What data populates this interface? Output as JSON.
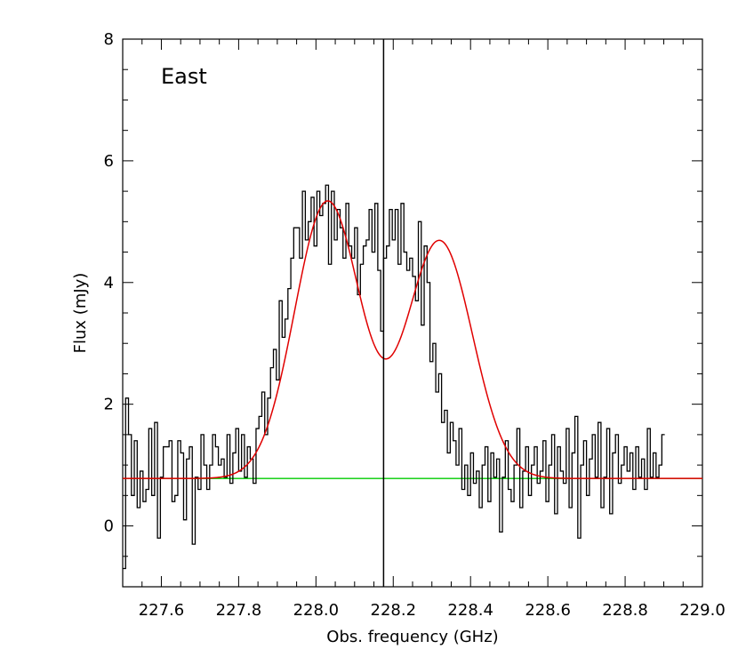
{
  "chart_data": {
    "type": "line",
    "xlabel": "Obs. frequency (GHz)",
    "ylabel": "Flux (mJy)",
    "annotation": "East",
    "xlim": [
      227.5,
      229.0
    ],
    "ylim": [
      -1,
      8
    ],
    "x_ticks": [
      "227.6",
      "227.8",
      "228.0",
      "228.2",
      "228.4",
      "228.6",
      "228.8",
      "229.0"
    ],
    "x_tick_values": [
      227.6,
      227.8,
      228.0,
      228.2,
      228.4,
      228.6,
      228.8,
      229.0
    ],
    "y_ticks": [
      "0",
      "2",
      "4",
      "6",
      "8"
    ],
    "y_tick_values": [
      0,
      2,
      4,
      6,
      8
    ],
    "vertical_line_x": 228.175,
    "colors": {
      "data": "#000000",
      "fit": "#e00000",
      "baseline": "#00cc00",
      "marker": "#000000"
    },
    "baseline_level": 0.78,
    "fit": {
      "components": [
        {
          "amplitude": 4.55,
          "center": 228.03,
          "sigma": 0.085
        },
        {
          "amplitude": 3.9,
          "center": 228.32,
          "sigma": 0.085
        }
      ]
    },
    "series": [
      {
        "style": "step",
        "x_start": 227.5,
        "x_step": 0.0075,
        "values": [
          -0.7,
          2.1,
          1.5,
          0.5,
          1.4,
          0.3,
          0.9,
          0.4,
          0.6,
          1.6,
          0.5,
          1.7,
          -0.2,
          0.8,
          1.3,
          1.3,
          1.4,
          0.4,
          0.5,
          1.4,
          1.2,
          0.1,
          1.1,
          1.3,
          -0.3,
          0.8,
          0.6,
          1.5,
          1.0,
          0.6,
          1.0,
          1.5,
          1.3,
          1.0,
          1.1,
          0.8,
          1.5,
          0.7,
          1.2,
          1.6,
          0.9,
          1.5,
          0.8,
          1.3,
          1.1,
          0.7,
          1.6,
          1.8,
          2.2,
          1.5,
          2.1,
          2.6,
          2.9,
          2.4,
          3.7,
          3.1,
          3.4,
          3.9,
          4.4,
          4.9,
          4.9,
          4.4,
          5.5,
          4.7,
          5.0,
          5.4,
          4.6,
          5.5,
          5.1,
          5.3,
          5.6,
          4.3,
          5.5,
          4.7,
          5.2,
          4.9,
          4.4,
          5.3,
          4.6,
          4.4,
          4.9,
          3.8,
          4.3,
          4.6,
          4.7,
          5.2,
          4.5,
          5.3,
          4.2,
          3.2,
          4.4,
          4.6,
          5.2,
          4.7,
          5.2,
          4.3,
          5.3,
          4.5,
          4.2,
          4.4,
          4.1,
          3.7,
          5.0,
          3.3,
          4.6,
          4.0,
          2.7,
          3.0,
          2.2,
          2.5,
          1.7,
          1.9,
          1.2,
          1.7,
          1.4,
          1.0,
          1.6,
          0.6,
          1.0,
          0.5,
          1.2,
          0.7,
          0.9,
          0.3,
          1.0,
          1.3,
          0.4,
          1.2,
          0.8,
          1.1,
          -0.1,
          0.8,
          1.4,
          0.6,
          0.4,
          1.0,
          1.6,
          0.3,
          0.9,
          1.3,
          0.5,
          1.0,
          1.3,
          0.7,
          0.9,
          1.4,
          0.4,
          1.0,
          1.5,
          0.2,
          1.3,
          0.9,
          0.7,
          1.6,
          0.3,
          1.2,
          1.8,
          -0.2,
          1.0,
          1.4,
          0.5,
          1.1,
          1.5,
          0.8,
          1.7,
          0.3,
          0.8,
          1.6,
          0.2,
          1.2,
          1.5,
          0.7,
          1.0,
          1.3,
          0.9,
          1.2,
          0.6,
          1.3,
          0.8,
          1.1,
          0.6,
          1.6,
          0.8,
          1.2,
          0.8,
          1.0,
          1.5
        ]
      }
    ]
  }
}
